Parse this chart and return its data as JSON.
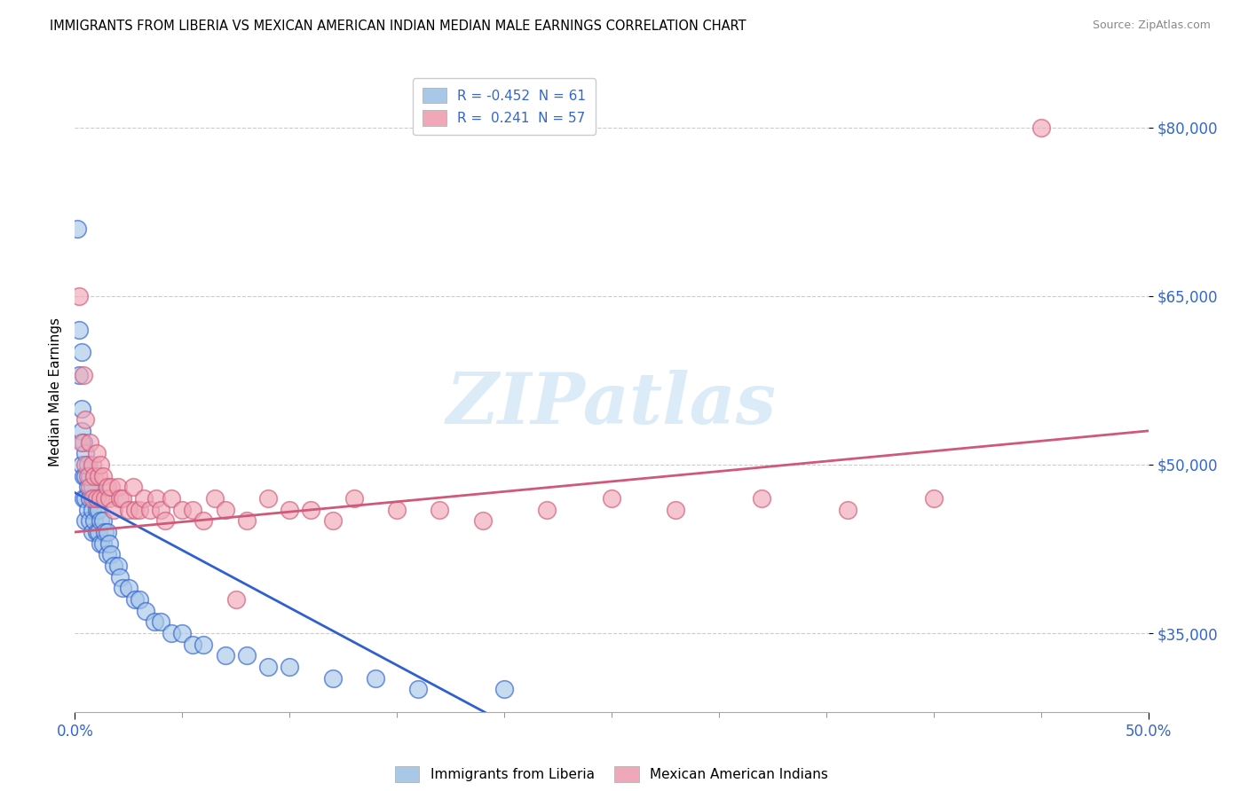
{
  "title": "IMMIGRANTS FROM LIBERIA VS MEXICAN AMERICAN INDIAN MEDIAN MALE EARNINGS CORRELATION CHART",
  "source": "Source: ZipAtlas.com",
  "ylabel": "Median Male Earnings",
  "xlim": [
    0.0,
    0.5
  ],
  "ylim": [
    28000,
    85000
  ],
  "yticks": [
    35000,
    50000,
    65000,
    80000
  ],
  "ytick_labels": [
    "$35,000",
    "$50,000",
    "$65,000",
    "$80,000"
  ],
  "xtick_labels": [
    "0.0%",
    "50.0%"
  ],
  "legend_labels": [
    "Immigrants from Liberia",
    "Mexican American Indians"
  ],
  "liberia_R": "-0.452",
  "liberia_N": "61",
  "mexican_R": "0.241",
  "mexican_N": "57",
  "color_liberia": "#a8c8e8",
  "color_mexican": "#f0a8b8",
  "color_liberia_line": "#3060d0",
  "color_mexican_line": "#d05878",
  "watermark": "ZIPatlas",
  "background_color": "#ffffff",
  "liberia_x": [
    0.001,
    0.002,
    0.002,
    0.003,
    0.003,
    0.003,
    0.004,
    0.004,
    0.004,
    0.005,
    0.005,
    0.005,
    0.005,
    0.006,
    0.006,
    0.006,
    0.007,
    0.007,
    0.007,
    0.008,
    0.008,
    0.008,
    0.009,
    0.009,
    0.01,
    0.01,
    0.01,
    0.011,
    0.011,
    0.012,
    0.012,
    0.013,
    0.013,
    0.014,
    0.015,
    0.015,
    0.016,
    0.017,
    0.018,
    0.02,
    0.021,
    0.022,
    0.025,
    0.028,
    0.03,
    0.033,
    0.037,
    0.04,
    0.045,
    0.05,
    0.055,
    0.06,
    0.07,
    0.08,
    0.09,
    0.1,
    0.12,
    0.14,
    0.16,
    0.2,
    0.003
  ],
  "liberia_y": [
    71000,
    62000,
    58000,
    55000,
    53000,
    50000,
    52000,
    49000,
    47000,
    51000,
    49000,
    47000,
    45000,
    50000,
    48000,
    46000,
    49000,
    47000,
    45000,
    48000,
    46000,
    44000,
    47000,
    45000,
    47000,
    46000,
    44000,
    46000,
    44000,
    45000,
    43000,
    45000,
    43000,
    44000,
    44000,
    42000,
    43000,
    42000,
    41000,
    41000,
    40000,
    39000,
    39000,
    38000,
    38000,
    37000,
    36000,
    36000,
    35000,
    35000,
    34000,
    34000,
    33000,
    33000,
    32000,
    32000,
    31000,
    31000,
    30000,
    30000,
    60000
  ],
  "mexican_x": [
    0.002,
    0.003,
    0.004,
    0.005,
    0.005,
    0.006,
    0.007,
    0.007,
    0.008,
    0.008,
    0.009,
    0.01,
    0.01,
    0.011,
    0.012,
    0.012,
    0.013,
    0.014,
    0.015,
    0.016,
    0.017,
    0.018,
    0.02,
    0.021,
    0.022,
    0.025,
    0.027,
    0.028,
    0.03,
    0.032,
    0.035,
    0.038,
    0.04,
    0.042,
    0.045,
    0.05,
    0.055,
    0.06,
    0.065,
    0.07,
    0.075,
    0.08,
    0.09,
    0.1,
    0.11,
    0.12,
    0.13,
    0.15,
    0.17,
    0.19,
    0.22,
    0.25,
    0.28,
    0.32,
    0.36,
    0.4,
    0.45
  ],
  "mexican_y": [
    65000,
    52000,
    58000,
    54000,
    50000,
    49000,
    52000,
    48000,
    50000,
    47000,
    49000,
    51000,
    47000,
    49000,
    50000,
    47000,
    49000,
    47000,
    48000,
    47000,
    48000,
    46000,
    48000,
    47000,
    47000,
    46000,
    48000,
    46000,
    46000,
    47000,
    46000,
    47000,
    46000,
    45000,
    47000,
    46000,
    46000,
    45000,
    47000,
    46000,
    38000,
    45000,
    47000,
    46000,
    46000,
    45000,
    47000,
    46000,
    46000,
    45000,
    46000,
    47000,
    46000,
    47000,
    46000,
    47000,
    80000
  ]
}
